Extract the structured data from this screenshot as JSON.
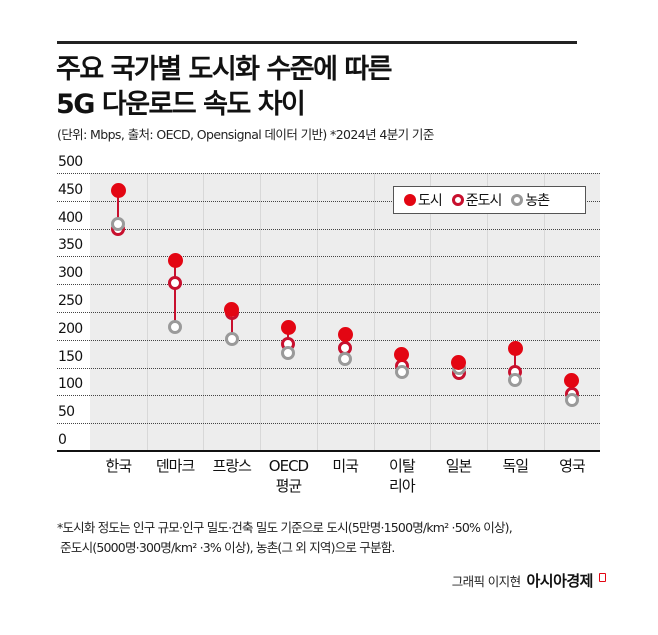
{
  "header": {
    "title_line1": "주요 국가별 도시화 수준에 따른",
    "title_line2": "5G 다운로드 속도 차이",
    "subtitle": "(단위: Mbps, 출처: OECD, Opensignal 데이터 기반)   *2024년 4분기 기준"
  },
  "legend": {
    "city": "도시",
    "semi": "준도시",
    "rural": "농촌"
  },
  "colors": {
    "city": "#e30613",
    "semi_urban": "#c8102e",
    "rural": "#9a9a9a",
    "plot_background": "#ededed"
  },
  "yticks": [
    "500",
    "450",
    "400",
    "350",
    "300",
    "250",
    "200",
    "150",
    "100",
    "50",
    "0"
  ],
  "xlabels": [
    {
      "line1": "한국",
      "line2": ""
    },
    {
      "line1": "덴마크",
      "line2": ""
    },
    {
      "line1": "프랑스",
      "line2": ""
    },
    {
      "line1": "OECD",
      "line2": "평균"
    },
    {
      "line1": "미국",
      "line2": ""
    },
    {
      "line1": "이탈",
      "line2": "리아"
    },
    {
      "line1": "일본",
      "line2": ""
    },
    {
      "line1": "독일",
      "line2": ""
    },
    {
      "line1": "영국",
      "line2": ""
    }
  ],
  "footnote": {
    "line1": "*도시화 정도는 인구 규모·인구 밀도·건축 밀도 기준으로 도시(5만명·1500명/km² ·50% 이상),",
    "line2": " 준도시(5000명·300명/km² ·3% 이상), 농촌(그 외 지역)으로 구분함."
  },
  "credit": {
    "graphic": "그래픽 이지현",
    "brand": "아시아경제"
  },
  "chart_data": {
    "type": "dot-range",
    "title": "주요 국가별 도시화 수준에 따른 5G 다운로드 속도 차이",
    "subtitle": "(단위: Mbps, 출처: OECD, Opensignal 데이터 기반) *2024년 4분기 기준",
    "xlabel": "",
    "ylabel": "Mbps",
    "ylim": [
      0,
      500
    ],
    "yticks": [
      0,
      50,
      100,
      150,
      200,
      250,
      300,
      350,
      400,
      450,
      500
    ],
    "grid": true,
    "legend_position": "top-right",
    "categories": [
      "한국",
      "덴마크",
      "프랑스",
      "OECD 평균",
      "미국",
      "이탈리아",
      "일본",
      "독일",
      "영국"
    ],
    "series": [
      {
        "name": "도시",
        "values": [
          469,
          342,
          255,
          223,
          210,
          174,
          160,
          185,
          126
        ]
      },
      {
        "name": "준도시",
        "values": [
          399,
          302,
          248,
          192,
          185,
          153,
          140,
          142,
          103
        ]
      },
      {
        "name": "농촌",
        "values": [
          408,
          223,
          201,
          176,
          165,
          142,
          149,
          128,
          92
        ]
      }
    ]
  }
}
